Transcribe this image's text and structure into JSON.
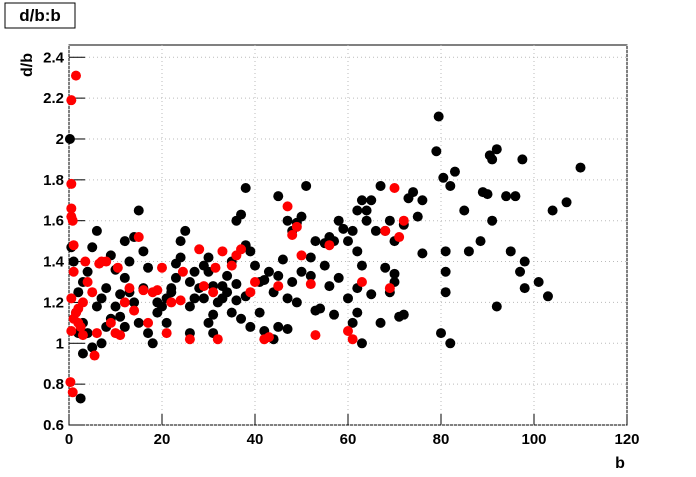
{
  "chart_data": {
    "type": "scatter",
    "title": "d/b:b",
    "x_label": "b",
    "y_label": "d/b",
    "xlim": [
      0,
      120
    ],
    "ylim": [
      0.6,
      2.46
    ],
    "xticks": [
      0,
      20,
      40,
      60,
      80,
      100,
      120
    ],
    "yticks": [
      0.6,
      0.8,
      1,
      1.2,
      1.4,
      1.6,
      1.8,
      2,
      2.2,
      2.4
    ],
    "grid": true,
    "series": [
      {
        "color": "#000000",
        "x": [
          0.2,
          0.5,
          2.5,
          79.5,
          79,
          80.5,
          82,
          83,
          90.5,
          91,
          92,
          97.5,
          110,
          104,
          107,
          101,
          103,
          98,
          92,
          97,
          95,
          98,
          88.5,
          86,
          85,
          89,
          90,
          91,
          94,
          96,
          80,
          82,
          81,
          81,
          81,
          76,
          75,
          73,
          74,
          76,
          72,
          72,
          71,
          68,
          68,
          67,
          67,
          70,
          70,
          69,
          65,
          63,
          64,
          62,
          64,
          62,
          61,
          63,
          63,
          62,
          60,
          59,
          58,
          57,
          56,
          55,
          55,
          57,
          53,
          52,
          51,
          50,
          49,
          48,
          47,
          46,
          45,
          44,
          43,
          42,
          41,
          40,
          39,
          38,
          37,
          36,
          35,
          34,
          33,
          32,
          31,
          30,
          29,
          28,
          27,
          26,
          25,
          24,
          23,
          22,
          21,
          20,
          19,
          18,
          17,
          16,
          15,
          14,
          13,
          12,
          11,
          10,
          9,
          8,
          7,
          6,
          5,
          4,
          3,
          2,
          1.5,
          3,
          4,
          5,
          3,
          6,
          7,
          8,
          9,
          10,
          11,
          12,
          13,
          14,
          16,
          17,
          19,
          21,
          22,
          23,
          24,
          26,
          27,
          29,
          30,
          31,
          33,
          34,
          35,
          36,
          37,
          38,
          39,
          41,
          42,
          44,
          45,
          47,
          48,
          49,
          50,
          52,
          54,
          56,
          58,
          60,
          61,
          62,
          65,
          66,
          69,
          70,
          47,
          36,
          38,
          45,
          53,
          30,
          31,
          26,
          15,
          12,
          2,
          1
        ],
        "values": [
          2.0,
          1.47,
          0.73,
          2.11,
          1.94,
          1.81,
          1.77,
          1.84,
          1.92,
          1.9,
          1.95,
          1.9,
          1.86,
          1.65,
          1.69,
          1.3,
          1.23,
          1.27,
          1.18,
          1.35,
          1.45,
          1.4,
          1.5,
          1.45,
          1.65,
          1.74,
          1.73,
          1.6,
          1.72,
          1.72,
          1.05,
          1.0,
          1.25,
          1.35,
          1.45,
          1.7,
          1.62,
          1.71,
          1.74,
          1.44,
          1.58,
          1.14,
          1.13,
          1.37,
          1.55,
          1.77,
          1.1,
          1.34,
          1.3,
          1.6,
          1.7,
          1.7,
          1.65,
          1.65,
          1.6,
          1.45,
          1.55,
          1.38,
          1.0,
          1.27,
          1.5,
          1.56,
          1.6,
          1.5,
          1.52,
          1.38,
          1.49,
          1.14,
          1.5,
          1.33,
          1.77,
          1.62,
          1.59,
          1.55,
          1.6,
          1.41,
          1.33,
          1.25,
          1.35,
          1.31,
          1.3,
          1.38,
          1.45,
          1.48,
          1.63,
          1.29,
          1.4,
          1.25,
          1.22,
          1.2,
          1.14,
          1.35,
          1.38,
          1.27,
          1.22,
          1.18,
          1.55,
          1.5,
          1.39,
          1.27,
          1.22,
          1.18,
          1.15,
          1.0,
          1.05,
          1.45,
          1.65,
          1.52,
          1.4,
          1.32,
          1.24,
          1.18,
          1.12,
          1.08,
          1.0,
          1.55,
          1.47,
          1.35,
          1.3,
          1.25,
          1.15,
          1.1,
          1.05,
          0.98,
          0.95,
          1.18,
          1.22,
          1.27,
          1.43,
          1.36,
          1.13,
          1.08,
          1.25,
          1.2,
          1.27,
          1.37,
          1.2,
          1.1,
          1.25,
          1.32,
          1.42,
          1.05,
          1.35,
          1.22,
          1.1,
          1.05,
          1.28,
          1.33,
          1.15,
          1.21,
          1.12,
          1.23,
          1.08,
          1.15,
          1.06,
          1.02,
          1.08,
          1.22,
          1.3,
          1.2,
          1.35,
          1.42,
          1.17,
          1.28,
          1.32,
          1.22,
          1.1,
          1.15,
          1.24,
          1.55,
          1.25,
          1.5,
          1.07,
          1.6,
          1.76,
          1.72,
          1.16,
          1.42,
          1.28,
          1.3,
          1.1,
          1.5,
          1.05,
          1.4
        ]
      },
      {
        "color": "#ff0000",
        "x": [
          1.5,
          0.5,
          0.5,
          0.5,
          0.5,
          0.8,
          1,
          1,
          0.5,
          0.3,
          0.8,
          1.5,
          2,
          2.5,
          3,
          3.5,
          4,
          5,
          5.5,
          6,
          6.5,
          7,
          8,
          9,
          10,
          10.5,
          11,
          12,
          13,
          14,
          15,
          16,
          17,
          18,
          19,
          20,
          21,
          22,
          24,
          24.5,
          26,
          28,
          29,
          31,
          31.5,
          32,
          33,
          35,
          36,
          37,
          39,
          40,
          42,
          43,
          45,
          47,
          48,
          49,
          50,
          52,
          53,
          56,
          60,
          61,
          63,
          68,
          69,
          70,
          71,
          72,
          1,
          2,
          3,
          0.5
        ],
        "values": [
          2.31,
          2.19,
          1.78,
          1.66,
          1.62,
          1.6,
          1.48,
          1.35,
          1.22,
          0.81,
          0.76,
          1.15,
          1.1,
          1.08,
          1.2,
          1.4,
          1.3,
          1.25,
          0.94,
          1.05,
          1.39,
          1.4,
          1.4,
          1.1,
          1.05,
          1.37,
          1.04,
          1.2,
          1.27,
          1.16,
          1.52,
          1.26,
          1.1,
          1.25,
          1.26,
          1.37,
          1.05,
          1.2,
          1.21,
          1.35,
          1.02,
          1.46,
          1.28,
          1.25,
          1.37,
          1.02,
          1.45,
          1.38,
          1.43,
          1.46,
          1.25,
          1.3,
          1.02,
          1.03,
          1.28,
          1.67,
          1.53,
          1.57,
          1.43,
          1.29,
          1.04,
          1.48,
          1.06,
          1.02,
          1.3,
          1.55,
          1.27,
          1.76,
          1.52,
          1.6,
          1.12,
          1.17,
          1.04,
          1.06
        ]
      }
    ]
  }
}
